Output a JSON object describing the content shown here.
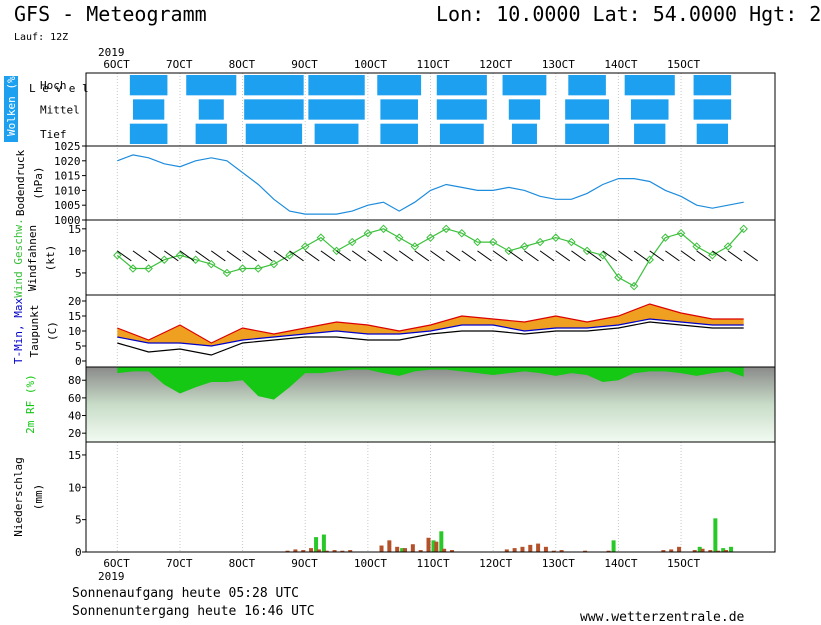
{
  "header": {
    "title": "GFS - Meteogramm",
    "coords": "Lon: 10.0000 Lat: 54.0000 Hgt: 2",
    "run": "Lauf: 12Z",
    "year_top": "2019",
    "year_bottom": "2019"
  },
  "footer": {
    "sunrise": "Sonnenaufgang heute 05:28 UTC",
    "sunset": "Sonnenuntergang heute 16:46 UTC",
    "site": "www.wetterzentrale.de"
  },
  "colors": {
    "cloud": "#1ea0f0",
    "pressure": "#1e8cdc",
    "wind": "#3cc03c",
    "precip_rain": "#b4502a",
    "precip_conv": "#28c828",
    "tmax": "#dc0000",
    "tmin": "#0000c8",
    "humidity": "#14c814"
  },
  "chart_data": [
    {
      "type": "heatmap",
      "panel": "clouds",
      "ylabel": "Wolken (%)",
      "ylabel2": "Level",
      "levels": [
        "Hoch",
        "Mittel",
        "Tief"
      ],
      "categories": [
        "6OCT",
        "7OCT",
        "8OCT",
        "9OCT",
        "10OCT",
        "11OCT",
        "12OCT",
        "13OCT",
        "14OCT",
        "15OCT"
      ],
      "series": [
        {
          "name": "Hoch",
          "values": [
            60,
            80,
            95,
            90,
            70,
            80,
            70,
            60,
            80,
            60
          ]
        },
        {
          "name": "Mittel",
          "values": [
            50,
            40,
            95,
            90,
            60,
            80,
            50,
            70,
            60,
            60
          ]
        },
        {
          "name": "Tief",
          "values": [
            60,
            50,
            90,
            70,
            60,
            70,
            40,
            70,
            50,
            50
          ]
        }
      ]
    },
    {
      "type": "line",
      "panel": "pressure",
      "ylabel": "Bodendruck",
      "unit": "(hPa)",
      "ylim": [
        1000,
        1025
      ],
      "yticks": [
        1000,
        1005,
        1010,
        1015,
        1020,
        1025
      ],
      "x": [
        0,
        6,
        12,
        18,
        24,
        30,
        36,
        42,
        48,
        54,
        60,
        66,
        72,
        78,
        84,
        90,
        96,
        102,
        108,
        114,
        120,
        126,
        132,
        138,
        144,
        150,
        156,
        162,
        168,
        174,
        180,
        186,
        192,
        198,
        204,
        210,
        216,
        222,
        228,
        234,
        240
      ],
      "values": [
        1020,
        1022,
        1021,
        1019,
        1018,
        1020,
        1021,
        1020,
        1016,
        1012,
        1007,
        1003,
        1002,
        1002,
        1002,
        1003,
        1005,
        1006,
        1003,
        1006,
        1010,
        1012,
        1011,
        1010,
        1010,
        1011,
        1010,
        1008,
        1007,
        1007,
        1009,
        1012,
        1014,
        1014,
        1013,
        1010,
        1008,
        1005,
        1004,
        1005,
        1006
      ]
    },
    {
      "type": "line",
      "panel": "wind",
      "ylabel": "Wind Geschw.",
      "ylabel2": "Windfahnen",
      "unit": "(kt)",
      "ylim": [
        0,
        17
      ],
      "yticks": [
        5,
        10,
        15
      ],
      "x": [
        0,
        6,
        12,
        18,
        24,
        30,
        36,
        42,
        48,
        54,
        60,
        66,
        72,
        78,
        84,
        90,
        96,
        102,
        108,
        114,
        120,
        126,
        132,
        138,
        144,
        150,
        156,
        162,
        168,
        174,
        180,
        186,
        192,
        198,
        204,
        210,
        216,
        222,
        228,
        234,
        240
      ],
      "values": [
        9,
        6,
        6,
        8,
        9,
        8,
        7,
        5,
        6,
        6,
        7,
        9,
        11,
        13,
        10,
        12,
        14,
        15,
        13,
        11,
        13,
        15,
        14,
        12,
        12,
        10,
        11,
        12,
        13,
        12,
        10,
        9,
        4,
        2,
        8,
        13,
        14,
        11,
        9,
        11,
        15
      ]
    },
    {
      "type": "area",
      "panel": "temperature",
      "ylabel": "T-Min, Max",
      "ylabel2": "Taupunkt",
      "unit": "(C)",
      "ylim": [
        -2,
        22
      ],
      "yticks": [
        0,
        5,
        10,
        15,
        20
      ],
      "x": [
        0,
        12,
        24,
        36,
        48,
        60,
        72,
        84,
        96,
        108,
        120,
        132,
        144,
        156,
        168,
        180,
        192,
        204,
        216,
        228,
        240
      ],
      "series": [
        {
          "name": "T-Max",
          "values": [
            11,
            7,
            12,
            6,
            11,
            9,
            11,
            13,
            12,
            10,
            12,
            15,
            14,
            13,
            15,
            13,
            15,
            19,
            16,
            14,
            14
          ]
        },
        {
          "name": "T-Min",
          "values": [
            8,
            6,
            6,
            5,
            7,
            8,
            9,
            10,
            9,
            9,
            10,
            12,
            12,
            10,
            11,
            11,
            12,
            14,
            13,
            12,
            12
          ]
        },
        {
          "name": "Taupunkt",
          "values": [
            6,
            3,
            4,
            2,
            6,
            7,
            8,
            8,
            7,
            7,
            9,
            10,
            10,
            9,
            10,
            10,
            11,
            13,
            12,
            11,
            11
          ]
        }
      ]
    },
    {
      "type": "area",
      "panel": "humidity",
      "ylabel": "2m RF (%)",
      "ylim": [
        10,
        95
      ],
      "yticks": [
        20,
        40,
        60,
        80
      ],
      "x": [
        0,
        6,
        12,
        18,
        24,
        30,
        36,
        42,
        48,
        54,
        60,
        66,
        72,
        78,
        84,
        90,
        96,
        102,
        108,
        114,
        120,
        126,
        132,
        138,
        144,
        150,
        156,
        162,
        168,
        174,
        180,
        186,
        192,
        198,
        204,
        210,
        216,
        222,
        228,
        234,
        240
      ],
      "values": [
        88,
        90,
        90,
        75,
        65,
        72,
        78,
        78,
        80,
        62,
        58,
        72,
        88,
        88,
        90,
        92,
        92,
        88,
        85,
        90,
        92,
        92,
        90,
        88,
        86,
        88,
        90,
        88,
        85,
        88,
        86,
        78,
        80,
        88,
        90,
        90,
        88,
        85,
        88,
        90,
        84
      ]
    },
    {
      "type": "bar",
      "panel": "precipitation",
      "ylabel": "Niederschlag",
      "unit": "(mm)",
      "ylim": [
        0,
        17
      ],
      "yticks": [
        0,
        5,
        10,
        15
      ],
      "x": [
        66,
        69,
        72,
        75,
        78,
        81,
        84,
        87,
        90,
        102,
        105,
        108,
        111,
        114,
        117,
        120,
        123,
        126,
        129,
        150,
        153,
        156,
        159,
        162,
        165,
        168,
        171,
        180,
        189,
        210,
        213,
        216,
        222,
        225,
        228,
        231,
        234
      ],
      "series": [
        {
          "name": "rain",
          "values": [
            0.2,
            0.4,
            0.3,
            0.6,
            0.4,
            0.2,
            0.3,
            0.2,
            0.3,
            1.0,
            1.8,
            0.8,
            0.6,
            1.2,
            0.3,
            2.2,
            1.6,
            0.5,
            0.3,
            0.4,
            0.6,
            0.8,
            1.1,
            1.3,
            0.8,
            0.2,
            0.3,
            0.2,
            0.2,
            0.3,
            0.4,
            0.8,
            0.3,
            0.5,
            0.3,
            0.2,
            0.3
          ]
        },
        {
          "name": "convective",
          "values": [
            0,
            0,
            0,
            2.3,
            2.7,
            0,
            0,
            0,
            0,
            0,
            0,
            0.6,
            0,
            0,
            0,
            1.8,
            3.2,
            0,
            0,
            0,
            0,
            0,
            0,
            0,
            0,
            0,
            0,
            0,
            1.8,
            0,
            0,
            0,
            0.8,
            0,
            5.2,
            0.6,
            0.8
          ]
        }
      ]
    }
  ],
  "axis": {
    "days": [
      "6OCT",
      "7OCT",
      "8OCT",
      "9OCT",
      "10OCT",
      "11OCT",
      "12OCT",
      "13OCT",
      "14OCT",
      "15OCT"
    ]
  }
}
